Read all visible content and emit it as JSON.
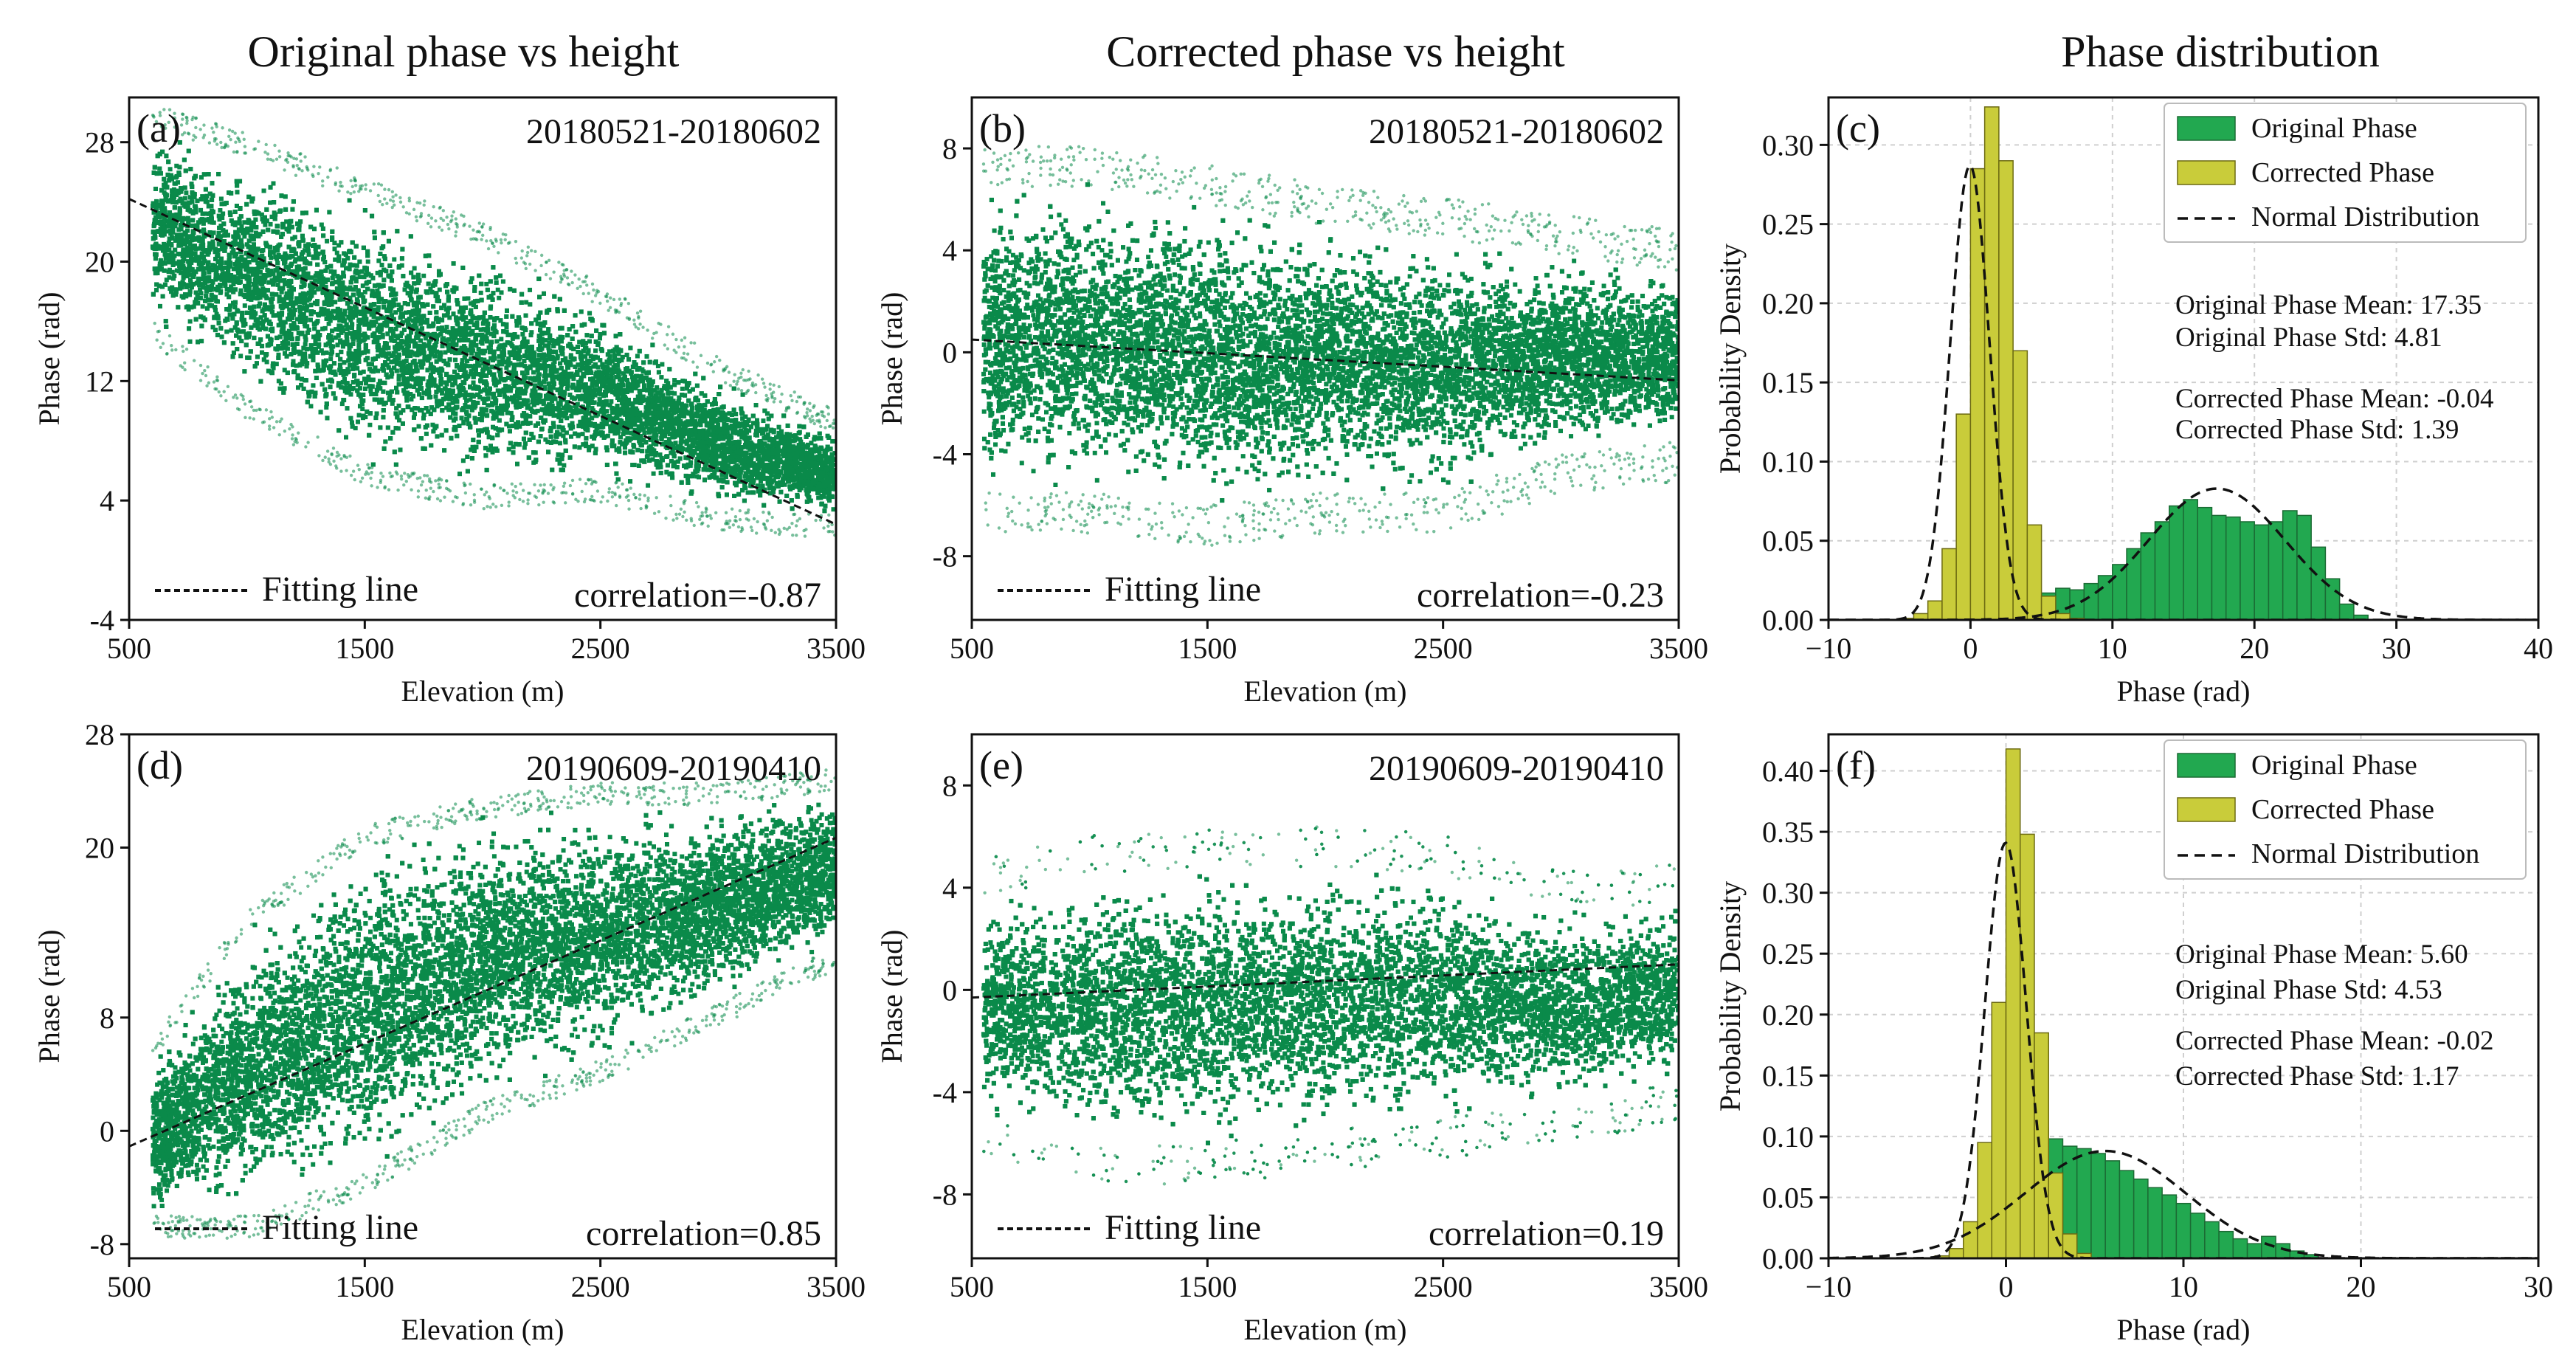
{
  "column_titles": [
    "Original phase vs height",
    "Corrected phase vs height",
    "Phase distribution"
  ],
  "colors": {
    "scatter": "#0a8a4a",
    "original_bar": "#22a850",
    "corrected_bar": "#c9cc3a",
    "fit": "#111111",
    "grid": "#cfcfcf"
  },
  "chart_data": [
    {
      "panel": "(a)",
      "type": "scatter",
      "date": "20180521-20180602",
      "xlabel": "Elevation (m)",
      "ylabel": "Phase (rad)",
      "xlim": [
        500,
        3500
      ],
      "ylim": [
        -4,
        31
      ],
      "xticks": [
        500,
        1500,
        2500,
        3500
      ],
      "yticks": [
        -4,
        4,
        12,
        20,
        28
      ],
      "legend": "Fitting line",
      "correlation": "correlation=-0.87",
      "fit": [
        [
          500,
          24.2
        ],
        [
          3500,
          2.4
        ]
      ],
      "bands": [
        {
          "x": [
            600,
            1000,
            1500,
            2000,
            2500,
            3000,
            3500
          ],
          "lo": [
            16,
            11,
            6.5,
            5,
            5.5,
            3.5,
            3
          ],
          "hi": [
            29,
            27,
            24,
            21,
            17,
            12,
            8.5
          ]
        }
      ],
      "blobs": [
        [
          900,
          3,
          80,
          0.8
        ],
        [
          1700,
          2.5,
          90,
          0.9
        ]
      ]
    },
    {
      "panel": "(b)",
      "type": "scatter",
      "date": "20180521-20180602",
      "xlabel": "Elevation (m)",
      "ylabel": "Phase (rad)",
      "xlim": [
        500,
        3500
      ],
      "ylim": [
        -10.5,
        10
      ],
      "xticks": [
        500,
        1500,
        2500,
        3500
      ],
      "yticks": [
        -8,
        -4,
        0,
        4,
        8
      ],
      "legend": "Fitting line",
      "correlation": "correlation=-0.23",
      "fit": [
        [
          500,
          0.5
        ],
        [
          3500,
          -1.1
        ]
      ],
      "bands": [
        {
          "x": [
            550,
            1000,
            1500,
            2000,
            2500,
            3000,
            3500
          ],
          "lo": [
            -5.5,
            -5.5,
            -6,
            -5.5,
            -5.5,
            -4,
            -3.5
          ],
          "hi": [
            6.5,
            6.5,
            5.8,
            5,
            4.5,
            3.8,
            3.2
          ]
        }
      ],
      "blobs": []
    },
    {
      "panel": "(c)",
      "type": "histogram",
      "xlabel": "Phase (rad)",
      "ylabel": "Probability Density",
      "xlim": [
        -10,
        40
      ],
      "ylim": [
        0,
        0.33
      ],
      "xticks": [
        -10,
        0,
        10,
        20,
        30,
        40
      ],
      "yticks": [
        0.0,
        0.05,
        0.1,
        0.15,
        0.2,
        0.25,
        0.3
      ],
      "ytick_labels": [
        "0.00",
        "0.05",
        "0.10",
        "0.15",
        "0.20",
        "0.25",
        "0.30"
      ],
      "bin_width": 1,
      "original_bins_start": 1,
      "original_values": [
        0.002,
        0.004,
        0.008,
        0.012,
        0.017,
        0.02,
        0.019,
        0.023,
        0.028,
        0.035,
        0.045,
        0.055,
        0.062,
        0.072,
        0.076,
        0.071,
        0.066,
        0.065,
        0.062,
        0.06,
        0.062,
        0.069,
        0.066,
        0.046,
        0.026,
        0.01,
        0.003
      ],
      "corrected_bins_start": -5,
      "corrected_values": [
        0.001,
        0.004,
        0.012,
        0.045,
        0.13,
        0.285,
        0.324,
        0.29,
        0.17,
        0.06,
        0.015,
        0.004,
        0.001
      ],
      "stats": {
        "orig_mean": 17.35,
        "orig_std": 4.81,
        "corr_mean": -0.04,
        "corr_std": 1.39
      },
      "stats_text": [
        "Original Phase Mean: 17.35",
        "Original Phase Std: 4.81",
        "Corrected Phase Mean: -0.04",
        "Corrected Phase Std: 1.39"
      ],
      "legend": [
        "Original Phase",
        "Corrected Phase",
        "Normal Distribution"
      ]
    },
    {
      "panel": "(d)",
      "type": "scatter",
      "date": "20190609-20190410",
      "xlabel": "Elevation (m)",
      "ylabel": "Phase (rad)",
      "xlim": [
        500,
        3500
      ],
      "ylim": [
        -9,
        28
      ],
      "xticks": [
        500,
        1500,
        2500,
        3500
      ],
      "yticks": [
        -8,
        0,
        8,
        20,
        28
      ],
      "legend": "Fitting line",
      "correlation": "correlation=0.85",
      "fit": [
        [
          500,
          -1.1
        ],
        [
          3500,
          20.7
        ]
      ],
      "bands": [
        {
          "x": [
            600,
            1000,
            1500,
            2000,
            2500,
            3000,
            3500
          ],
          "lo": [
            -6,
            -6,
            -3,
            2,
            5,
            9,
            13
          ],
          "hi": [
            5,
            14,
            20,
            22,
            23,
            23,
            24
          ]
        }
      ],
      "blobs": [
        [
          1700,
          -3,
          100,
          1.2
        ],
        [
          2300,
          2,
          80,
          1.0
        ]
      ]
    },
    {
      "panel": "(e)",
      "type": "scatter",
      "date": "20190609-20190410",
      "xlabel": "Elevation (m)",
      "ylabel": "Phase (rad)",
      "xlim": [
        500,
        3500
      ],
      "ylim": [
        -10.5,
        10
      ],
      "xticks": [
        500,
        1500,
        2500,
        3500
      ],
      "yticks": [
        -8,
        -4,
        0,
        4,
        8
      ],
      "legend": "Fitting line",
      "correlation": "correlation=0.19",
      "fit": [
        [
          500,
          -0.3
        ],
        [
          3500,
          1.0
        ]
      ],
      "bands": [
        {
          "x": [
            550,
            1000,
            1500,
            2000,
            2500,
            3000,
            3500
          ],
          "lo": [
            -5,
            -6,
            -6,
            -5.5,
            -5,
            -4.5,
            -3.5
          ],
          "hi": [
            3.5,
            4.5,
            4.8,
            4.8,
            4.5,
            3,
            3.5
          ]
        }
      ],
      "blobs": []
    },
    {
      "panel": "(f)",
      "type": "histogram",
      "xlabel": "Phase (rad)",
      "ylabel": "Probability Density",
      "xlim": [
        -10,
        30
      ],
      "ylim": [
        0,
        0.43
      ],
      "xticks": [
        -10,
        0,
        10,
        20,
        30
      ],
      "yticks": [
        0.0,
        0.05,
        0.1,
        0.15,
        0.2,
        0.25,
        0.3,
        0.35,
        0.4
      ],
      "ytick_labels": [
        "0.00",
        "0.05",
        "0.10",
        "0.15",
        "0.20",
        "0.25",
        "0.30",
        "0.35",
        "0.40"
      ],
      "bin_width": 0.8,
      "original_bins_start": -3.2,
      "original_values": [
        0.003,
        0.008,
        0.015,
        0.03,
        0.055,
        0.085,
        0.107,
        0.098,
        0.092,
        0.09,
        0.086,
        0.08,
        0.072,
        0.065,
        0.058,
        0.052,
        0.045,
        0.037,
        0.03,
        0.022,
        0.016,
        0.012,
        0.018,
        0.012,
        0.006,
        0.003
      ],
      "corrected_bins_start": -4,
      "corrected_values": [
        0.002,
        0.008,
        0.03,
        0.095,
        0.21,
        0.418,
        0.348,
        0.185,
        0.07,
        0.02,
        0.004
      ],
      "stats": {
        "orig_mean": 5.6,
        "orig_std": 4.53,
        "corr_mean": -0.02,
        "corr_std": 1.17
      },
      "stats_text": [
        "Original Phase Mean: 5.60",
        "Original Phase Std: 4.53",
        "Corrected Phase Mean: -0.02",
        "Corrected Phase Std: 1.17"
      ],
      "legend": [
        "Original Phase",
        "Corrected Phase",
        "Normal Distribution"
      ]
    }
  ]
}
